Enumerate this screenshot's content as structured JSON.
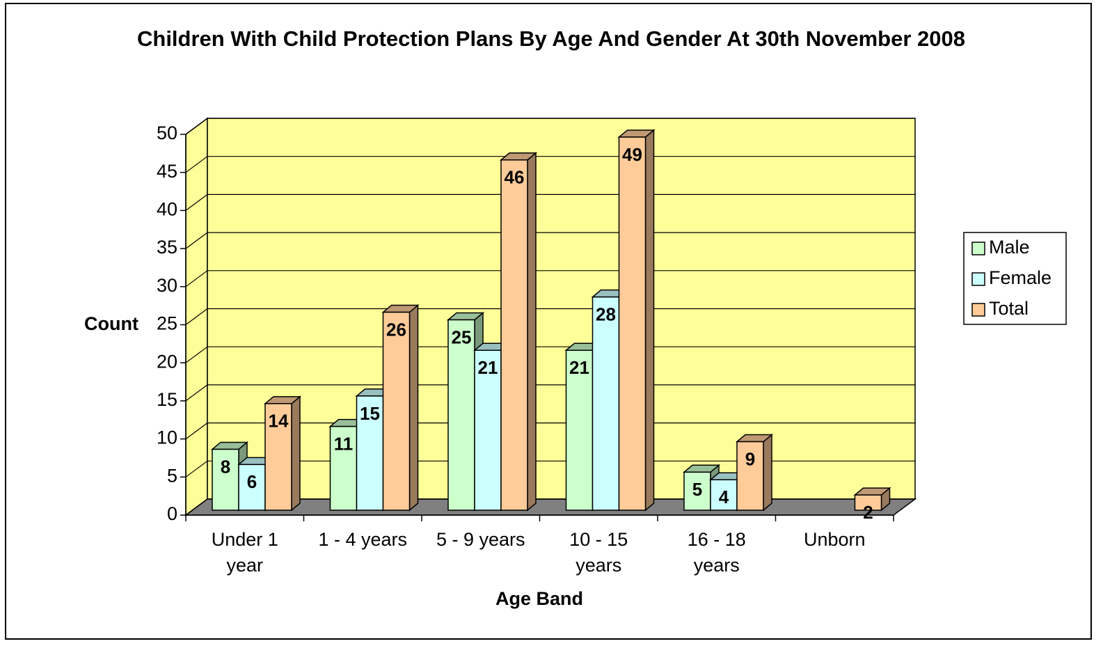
{
  "chart_data": {
    "type": "bar3d",
    "title": "Children With Child Protection Plans By Age And Gender At 30th November 2008",
    "xlabel": "Age Band",
    "ylabel": "Count",
    "categories": [
      "Under 1 year",
      "1 - 4 years",
      "5 - 9 years",
      "10 - 15 years",
      "16 - 18 years",
      "Unborn"
    ],
    "series": [
      {
        "name": "Male",
        "color": "#ccffcc",
        "values": [
          8,
          11,
          25,
          21,
          5,
          null
        ]
      },
      {
        "name": "Female",
        "color": "#ccffff",
        "values": [
          6,
          15,
          21,
          28,
          4,
          null
        ]
      },
      {
        "name": "Total",
        "color": "#ffcc99",
        "values": [
          14,
          26,
          46,
          49,
          9,
          2
        ]
      }
    ],
    "ylim": [
      0,
      50
    ],
    "yticks": [
      0,
      5,
      10,
      15,
      20,
      25,
      30,
      35,
      40,
      45,
      50
    ],
    "grid": true,
    "wall_color": "#ffff99",
    "floor_color": "#808080",
    "legend": "right"
  }
}
